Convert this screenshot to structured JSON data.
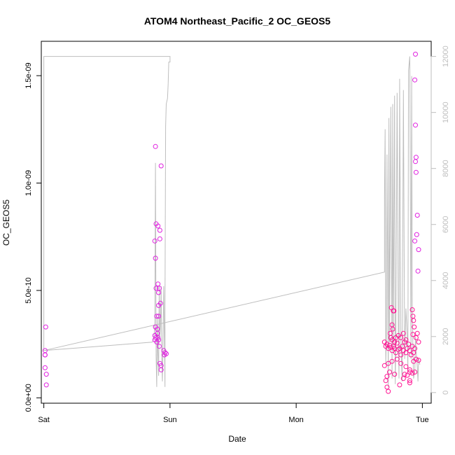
{
  "chart_data": {
    "type": "scatter",
    "title": "ATOM4 Northeast_Pacific_2 OC_GEOS5",
    "xlabel": "Date",
    "ylabel": "OC_GEOS5",
    "x_ticks": [
      "Sat",
      "Sun",
      "Mon",
      "Tue"
    ],
    "y_ticks": [
      "0.0e+00",
      "5.0e-10",
      "1.0e-09",
      "1.5e-09"
    ],
    "y_ticks_values": [
      0,
      5e-10,
      1e-09,
      1.5e-09
    ],
    "y2_ticks": [
      "0",
      "2000",
      "4000",
      "6000",
      "8000",
      "10000",
      "12000"
    ],
    "y2_ticks_values": [
      0,
      2000,
      4000,
      6000,
      8000,
      10000,
      12000
    ],
    "xlim": [
      -0.02,
      3.07
    ],
    "ylim": [
      -2.5e-11,
      1.66e-09
    ],
    "y2lim": [
      -380,
      12540
    ],
    "colors": {
      "points_a": "#e020e0",
      "points_b": "#ff1493",
      "altitude_line": "#bebebe"
    },
    "series": [
      {
        "values": [
          [
            0.01,
            2.2e-10
          ],
          [
            0.01,
            2e-10
          ],
          [
            0.01,
            2e-10
          ],
          [
            0.015,
            3.3e-10
          ],
          [
            0.01,
            1.4e-10
          ],
          [
            0.02,
            1.1e-10
          ],
          [
            0.02,
            6e-11
          ],
          [
            0.885,
            1.17e-09
          ],
          [
            0.88,
            7.3e-10
          ],
          [
            0.89,
            8.1e-10
          ],
          [
            0.885,
            6.5e-10
          ],
          [
            0.905,
            8e-10
          ],
          [
            0.92,
            7.8e-10
          ],
          [
            0.92,
            7.4e-10
          ],
          [
            0.93,
            1.08e-09
          ],
          [
            0.89,
            5.1e-10
          ],
          [
            0.905,
            5.3e-10
          ],
          [
            0.915,
            5.1e-10
          ],
          [
            0.91,
            4.9e-10
          ],
          [
            0.925,
            4.4e-10
          ],
          [
            0.91,
            4.3e-10
          ],
          [
            0.895,
            3.8e-10
          ],
          [
            0.91,
            3.8e-10
          ],
          [
            0.885,
            3.3e-10
          ],
          [
            0.88,
            2.9e-10
          ],
          [
            0.89,
            2.8e-10
          ],
          [
            0.9,
            3.2e-10
          ],
          [
            0.9,
            3e-10
          ],
          [
            0.88,
            2.7e-10
          ],
          [
            0.895,
            2.6e-10
          ],
          [
            0.905,
            2.8e-10
          ],
          [
            0.91,
            2.7e-10
          ],
          [
            0.915,
            2.4e-10
          ],
          [
            0.95,
            2.2e-10
          ],
          [
            0.96,
            2.1e-10
          ],
          [
            0.97,
            2.05e-10
          ],
          [
            0.955,
            2e-10
          ],
          [
            0.92,
            1.6e-10
          ],
          [
            0.93,
            1.5e-10
          ],
          [
            0.93,
            1.3e-10
          ],
          [
            2.945,
            1.6e-09
          ],
          [
            2.94,
            1.48e-09
          ],
          [
            2.945,
            1.27e-09
          ],
          [
            2.95,
            1.12e-09
          ],
          [
            2.945,
            1.1e-09
          ],
          [
            2.95,
            1.05e-09
          ],
          [
            2.96,
            8.5e-10
          ],
          [
            2.955,
            7.6e-10
          ],
          [
            2.94,
            7.3e-10
          ],
          [
            2.97,
            6.9e-10
          ],
          [
            2.965,
            5.9e-10
          ]
        ]
      },
      {
        "values": [
          [
            2.7,
            2.6e-10
          ],
          [
            2.72,
            2.5e-10
          ],
          [
            2.71,
            2.4e-10
          ],
          [
            2.73,
            2.3e-10
          ],
          [
            2.74,
            2.45e-10
          ],
          [
            2.75,
            2.35e-10
          ],
          [
            2.76,
            2.2e-10
          ],
          [
            2.77,
            2.4e-10
          ],
          [
            2.78,
            2.3e-10
          ],
          [
            2.79,
            2.1e-10
          ],
          [
            2.8,
            2.55e-10
          ],
          [
            2.81,
            2.25e-10
          ],
          [
            2.82,
            2.3e-10
          ],
          [
            2.83,
            2e-10
          ],
          [
            2.84,
            2.4e-10
          ],
          [
            2.85,
            2.2e-10
          ],
          [
            2.86,
            2.6e-10
          ],
          [
            2.87,
            2.1e-10
          ],
          [
            2.88,
            2.3e-10
          ],
          [
            2.89,
            2.5e-10
          ],
          [
            2.9,
            2.2e-10
          ],
          [
            2.91,
            2e-10
          ],
          [
            2.92,
            2.4e-10
          ],
          [
            2.93,
            2.1e-10
          ],
          [
            2.94,
            2.3e-10
          ],
          [
            2.95,
            2.8e-10
          ],
          [
            2.96,
            3e-10
          ],
          [
            2.97,
            2.6e-10
          ],
          [
            2.755,
            4.2e-10
          ],
          [
            2.77,
            4.05e-10
          ],
          [
            2.775,
            4.05e-10
          ],
          [
            2.76,
            3.4e-10
          ],
          [
            2.765,
            3.2e-10
          ],
          [
            2.745,
            3e-10
          ],
          [
            2.75,
            2.8e-10
          ],
          [
            2.76,
            2.7e-10
          ],
          [
            2.78,
            2.6e-10
          ],
          [
            2.79,
            2.8e-10
          ],
          [
            2.81,
            2.9e-10
          ],
          [
            2.83,
            2.8e-10
          ],
          [
            2.85,
            3e-10
          ],
          [
            2.87,
            2.7e-10
          ],
          [
            2.92,
            4.1e-10
          ],
          [
            2.925,
            3.8e-10
          ],
          [
            2.93,
            3.6e-10
          ],
          [
            2.935,
            3.3e-10
          ],
          [
            2.925,
            2.95e-10
          ],
          [
            2.7,
            1.5e-10
          ],
          [
            2.73,
            1.6e-10
          ],
          [
            2.76,
            1.7e-10
          ],
          [
            2.8,
            1.8e-10
          ],
          [
            2.83,
            1.6e-10
          ],
          [
            2.87,
            1.45e-10
          ],
          [
            2.9,
            1.3e-10
          ],
          [
            2.93,
            1.7e-10
          ],
          [
            2.95,
            1.8e-10
          ],
          [
            2.97,
            1.75e-10
          ],
          [
            2.72,
            1e-10
          ],
          [
            2.74,
            1.2e-10
          ],
          [
            2.78,
            1.1e-10
          ],
          [
            2.86,
            1.1e-10
          ],
          [
            2.88,
            1.05e-10
          ],
          [
            2.9,
            1.2e-10
          ],
          [
            2.92,
            1.15e-10
          ],
          [
            2.94,
            1.2e-10
          ],
          [
            2.85,
            9e-11
          ],
          [
            2.9,
            8e-11
          ],
          [
            2.71,
            8e-11
          ],
          [
            2.72,
            5e-11
          ],
          [
            2.73,
            3e-11
          ],
          [
            2.82,
            6e-11
          ],
          [
            2.9,
            7e-11
          ]
        ]
      },
      {
        "axis": "right",
        "x": [
          0.0,
          0.0,
          1.0,
          1.0,
          0.99,
          0.985,
          0.98,
          0.97,
          0.965,
          0.96,
          0.96,
          0.95,
          0.94,
          0.935,
          0.93,
          0.925,
          0.92,
          0.915,
          0.91,
          0.905,
          0.9,
          0.895,
          0.89,
          0.885,
          0.88,
          0.875,
          0.87,
          0.86,
          0.0,
          2.7,
          2.7,
          2.705,
          2.71,
          2.715,
          2.72,
          2.73,
          2.735,
          2.74,
          2.75,
          2.76,
          2.765,
          2.77,
          2.78,
          2.785,
          2.79,
          2.8,
          2.81,
          2.815,
          2.82,
          2.83,
          2.84,
          2.85,
          2.86,
          2.87,
          2.88,
          2.885,
          2.89,
          2.9,
          2.91,
          2.915,
          2.92,
          2.925,
          2.93,
          2.94,
          2.945,
          2.95,
          2.96,
          2.965,
          2.97,
          2.98
        ],
        "values": [
          1500,
          12000,
          12000,
          11800,
          11800,
          11000,
          10500,
          10300,
          9500,
          3000,
          200,
          3800,
          400,
          1200,
          3800,
          2400,
          2000,
          3800,
          600,
          1400,
          2700,
          200,
          1300,
          8200,
          2500,
          2100,
          1900,
          1800,
          1500,
          4300,
          7000,
          9400,
          1000,
          2000,
          8500,
          200,
          9800,
          1800,
          10200,
          500,
          10300,
          1600,
          10600,
          300,
          1800,
          10700,
          2200,
          500,
          11200,
          1800,
          400,
          10800,
          1200,
          3000,
          2000,
          700,
          11500,
          12000,
          1200,
          11300,
          3000,
          1500,
          500,
          800,
          2000,
          1500,
          900,
          400,
          1200,
          1000
        ]
      }
    ]
  }
}
